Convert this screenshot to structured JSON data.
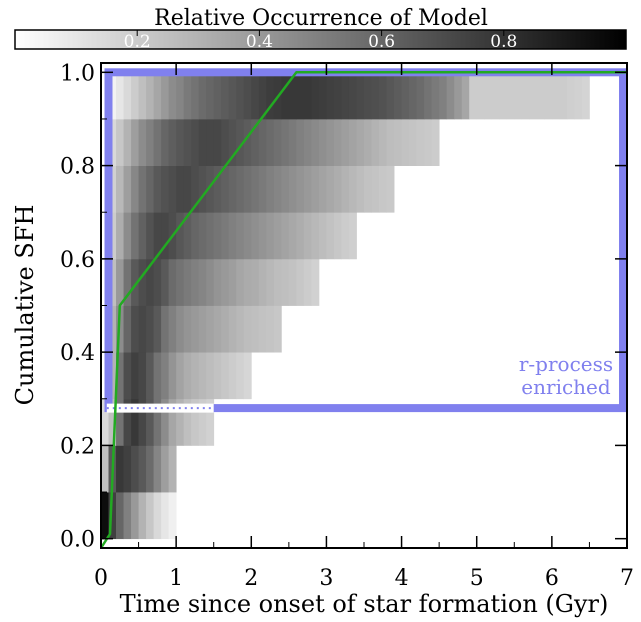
{
  "chart_data": {
    "type": "heatmap",
    "xlabel": "Time since onset of star formation (Gyr)",
    "ylabel": "Cumulative SFH",
    "xlim": [
      0,
      7
    ],
    "ylim": [
      -0.02,
      1.02
    ],
    "x_ticks": [
      0,
      1,
      2,
      3,
      4,
      5,
      6,
      7
    ],
    "x_tick_labels": [
      "0",
      "1",
      "2",
      "3",
      "4",
      "5",
      "6",
      "7"
    ],
    "y_ticks": [
      0.0,
      0.2,
      0.4,
      0.6,
      0.8,
      1.0
    ],
    "y_tick_labels": [
      "0.0",
      "0.2",
      "0.4",
      "0.6",
      "0.8",
      "1.0"
    ],
    "colorbar": {
      "title": "Relative Occurrence of Model",
      "range": [
        0,
        1
      ],
      "tick_values": [
        0.2,
        0.4,
        0.6,
        0.8
      ],
      "tick_labels": [
        "0.2",
        "0.4",
        "0.6",
        "0.8"
      ],
      "colormap": "white-to-black"
    },
    "heatmap": {
      "x_bin_width": 0.1,
      "rows": [
        {
          "y0": 0.0,
          "y1": 0.1,
          "x_start": 0.0,
          "values": [
            0.95,
            0.75,
            0.6,
            0.5,
            0.4,
            0.3,
            0.22,
            0.15,
            0.1,
            0.06
          ]
        },
        {
          "y0": 0.1,
          "y1": 0.2,
          "x_start": 0.0,
          "values": [
            0.25,
            0.65,
            0.78,
            0.75,
            0.7,
            0.65,
            0.58,
            0.48,
            0.38,
            0.3
          ]
        },
        {
          "y0": 0.2,
          "y1": 0.3,
          "x_start": 0.0,
          "values": [
            0.15,
            0.25,
            0.55,
            0.72,
            0.78,
            0.72,
            0.65,
            0.55,
            0.45,
            0.35,
            0.3,
            0.25,
            0.22,
            0.2,
            0.18
          ]
        },
        {
          "y0": 0.3,
          "y1": 0.4,
          "x_start": 0.1,
          "values": [
            0.3,
            0.55,
            0.7,
            0.75,
            0.72,
            0.65,
            0.55,
            0.5,
            0.42,
            0.36,
            0.32,
            0.3,
            0.28,
            0.26,
            0.24,
            0.22,
            0.2,
            0.18,
            0.16
          ]
        },
        {
          "y0": 0.4,
          "y1": 0.5,
          "x_start": 0.1,
          "values": [
            0.3,
            0.45,
            0.6,
            0.7,
            0.72,
            0.7,
            0.65,
            0.55,
            0.5,
            0.45,
            0.42,
            0.4,
            0.38,
            0.36,
            0.34,
            0.32,
            0.3,
            0.28,
            0.26,
            0.25,
            0.24,
            0.23,
            0.22
          ]
        },
        {
          "y0": 0.5,
          "y1": 0.6,
          "x_start": 0.1,
          "values": [
            0.25,
            0.4,
            0.55,
            0.65,
            0.7,
            0.72,
            0.7,
            0.65,
            0.58,
            0.55,
            0.52,
            0.5,
            0.48,
            0.45,
            0.42,
            0.4,
            0.38,
            0.35,
            0.33,
            0.32,
            0.3,
            0.28,
            0.26,
            0.25,
            0.24,
            0.22,
            0.2,
            0.18
          ]
        },
        {
          "y0": 0.6,
          "y1": 0.7,
          "x_start": 0.1,
          "values": [
            0.2,
            0.32,
            0.45,
            0.55,
            0.62,
            0.68,
            0.72,
            0.72,
            0.7,
            0.66,
            0.63,
            0.6,
            0.58,
            0.56,
            0.54,
            0.52,
            0.5,
            0.48,
            0.46,
            0.44,
            0.42,
            0.4,
            0.38,
            0.36,
            0.34,
            0.32,
            0.3,
            0.28,
            0.26,
            0.24,
            0.22,
            0.2,
            0.19
          ]
        },
        {
          "y0": 0.7,
          "y1": 0.8,
          "x_start": 0.1,
          "values": [
            0.18,
            0.28,
            0.38,
            0.47,
            0.55,
            0.6,
            0.65,
            0.68,
            0.7,
            0.72,
            0.72,
            0.7,
            0.68,
            0.66,
            0.64,
            0.62,
            0.6,
            0.58,
            0.56,
            0.54,
            0.52,
            0.5,
            0.48,
            0.46,
            0.44,
            0.42,
            0.4,
            0.38,
            0.36,
            0.34,
            0.32,
            0.3,
            0.28,
            0.26,
            0.24,
            0.23,
            0.22,
            0.21
          ]
        },
        {
          "y0": 0.8,
          "y1": 0.9,
          "x_start": 0.1,
          "values": [
            0.15,
            0.22,
            0.3,
            0.38,
            0.45,
            0.5,
            0.55,
            0.6,
            0.63,
            0.66,
            0.68,
            0.7,
            0.72,
            0.72,
            0.72,
            0.7,
            0.68,
            0.66,
            0.64,
            0.62,
            0.6,
            0.58,
            0.56,
            0.54,
            0.52,
            0.5,
            0.48,
            0.46,
            0.44,
            0.42,
            0.4,
            0.38,
            0.36,
            0.34,
            0.32,
            0.3,
            0.28,
            0.26,
            0.25,
            0.24,
            0.23,
            0.22,
            0.21,
            0.2
          ]
        },
        {
          "y0": 0.9,
          "y1": 1.0,
          "x_start": 0.1,
          "values": [
            0.05,
            0.1,
            0.15,
            0.2,
            0.25,
            0.3,
            0.35,
            0.4,
            0.45,
            0.48,
            0.52,
            0.55,
            0.58,
            0.6,
            0.62,
            0.64,
            0.66,
            0.68,
            0.7,
            0.72,
            0.74,
            0.76,
            0.77,
            0.78,
            0.78,
            0.78,
            0.78,
            0.77,
            0.76,
            0.75,
            0.74,
            0.73,
            0.72,
            0.71,
            0.7,
            0.69,
            0.68,
            0.66,
            0.64,
            0.62,
            0.6,
            0.58,
            0.55,
            0.52,
            0.5,
            0.45,
            0.4,
            0.35,
            0.2,
            0.2,
            0.2,
            0.2,
            0.2,
            0.2,
            0.2,
            0.2,
            0.2,
            0.2,
            0.2,
            0.2,
            0.2,
            0.19,
            0.18,
            0.17
          ]
        }
      ]
    },
    "series": [
      {
        "type": "line",
        "color": "#22aa22",
        "x": [
          0.0,
          0.12,
          0.25,
          2.6,
          7.0
        ],
        "y": [
          -0.02,
          0.01,
          0.5,
          1.0,
          1.0
        ]
      }
    ],
    "annotations": [
      {
        "text_lines": [
          "r-process",
          "enriched"
        ],
        "color": "#8080ee",
        "region": {
          "x0": 0.05,
          "x1": 7.0,
          "y0": 0.28,
          "y1": 1.0
        },
        "dotted_line": {
          "x0": 0.05,
          "x1": 1.5,
          "y": 0.28
        }
      }
    ]
  }
}
